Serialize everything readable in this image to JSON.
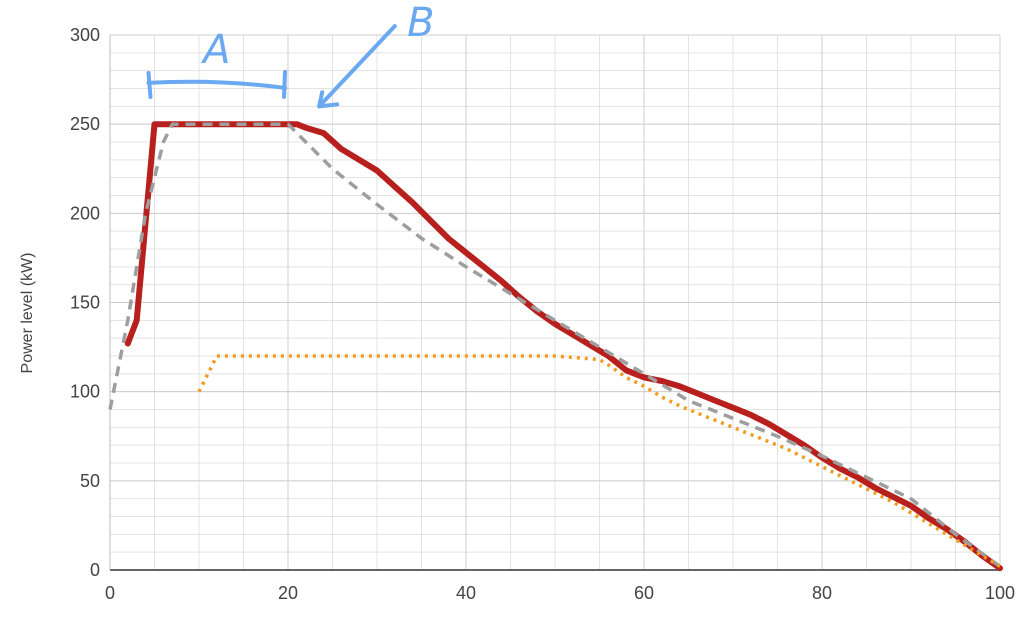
{
  "chart_data": {
    "type": "line",
    "title": "",
    "xlabel": "",
    "ylabel": "Power level (kW)",
    "xlim": [
      0,
      100
    ],
    "ylim": [
      0,
      300
    ],
    "xticks": [
      0,
      20,
      40,
      60,
      80,
      100
    ],
    "yticks": [
      0,
      50,
      100,
      150,
      200,
      250,
      300
    ],
    "grid": true,
    "series": [
      {
        "color": "#b7201d",
        "style": "solid",
        "points": [
          [
            2,
            127
          ],
          [
            3,
            140
          ],
          [
            5,
            250
          ],
          [
            21,
            250
          ],
          [
            22,
            248
          ],
          [
            24,
            245
          ],
          [
            26,
            236
          ],
          [
            28,
            230
          ],
          [
            30,
            224
          ],
          [
            32,
            215
          ],
          [
            34,
            206
          ],
          [
            36,
            196
          ],
          [
            38,
            186
          ],
          [
            40,
            178
          ],
          [
            42,
            170
          ],
          [
            44,
            162
          ],
          [
            46,
            153
          ],
          [
            48,
            145
          ],
          [
            50,
            138
          ],
          [
            52,
            132
          ],
          [
            54,
            126
          ],
          [
            56,
            120
          ],
          [
            58,
            112
          ],
          [
            60,
            108
          ],
          [
            62,
            106
          ],
          [
            64,
            103
          ],
          [
            66,
            99
          ],
          [
            68,
            95
          ],
          [
            70,
            91
          ],
          [
            72,
            87
          ],
          [
            74,
            82
          ],
          [
            76,
            76
          ],
          [
            78,
            70
          ],
          [
            80,
            63
          ],
          [
            82,
            57
          ],
          [
            84,
            52
          ],
          [
            86,
            46
          ],
          [
            88,
            41
          ],
          [
            90,
            36
          ],
          [
            92,
            29
          ],
          [
            94,
            23
          ],
          [
            96,
            16
          ],
          [
            98,
            8
          ],
          [
            100,
            1
          ]
        ]
      },
      {
        "color": "#9e9e9e",
        "style": "dashed",
        "points": [
          [
            0,
            90
          ],
          [
            2,
            140
          ],
          [
            4,
            200
          ],
          [
            6,
            240
          ],
          [
            7,
            250
          ],
          [
            20,
            250
          ],
          [
            22,
            240
          ],
          [
            25,
            225
          ],
          [
            30,
            205
          ],
          [
            35,
            186
          ],
          [
            40,
            170
          ],
          [
            45,
            155
          ],
          [
            50,
            140
          ],
          [
            55,
            125
          ],
          [
            60,
            110
          ],
          [
            62,
            104
          ],
          [
            65,
            95
          ],
          [
            70,
            85
          ],
          [
            75,
            75
          ],
          [
            80,
            64
          ],
          [
            85,
            52
          ],
          [
            90,
            40
          ],
          [
            95,
            20
          ],
          [
            100,
            2
          ]
        ]
      },
      {
        "color": "#f29b1d",
        "style": "dotted",
        "points": [
          [
            10,
            100
          ],
          [
            12,
            120
          ],
          [
            20,
            120
          ],
          [
            40,
            120
          ],
          [
            50,
            120
          ],
          [
            55,
            118
          ],
          [
            56,
            115
          ],
          [
            58,
            108
          ],
          [
            60,
            103
          ],
          [
            62,
            97
          ],
          [
            64,
            92
          ],
          [
            66,
            88
          ],
          [
            68,
            84
          ],
          [
            70,
            80
          ],
          [
            72,
            76
          ],
          [
            74,
            72
          ],
          [
            76,
            68
          ],
          [
            78,
            63
          ],
          [
            80,
            58
          ],
          [
            82,
            53
          ],
          [
            84,
            48
          ],
          [
            86,
            43
          ],
          [
            88,
            38
          ],
          [
            90,
            32
          ],
          [
            92,
            26
          ],
          [
            94,
            20
          ],
          [
            96,
            14
          ],
          [
            98,
            8
          ],
          [
            100,
            2
          ]
        ]
      }
    ],
    "annotations": [
      {
        "text": "A",
        "kind": "bracket",
        "x_range": [
          5,
          20
        ],
        "y": 272
      },
      {
        "text": "B",
        "kind": "arrow",
        "from": [
          32,
          305
        ],
        "to": [
          23.5,
          260
        ]
      }
    ],
    "annotation_color": "#6aa8f2"
  }
}
